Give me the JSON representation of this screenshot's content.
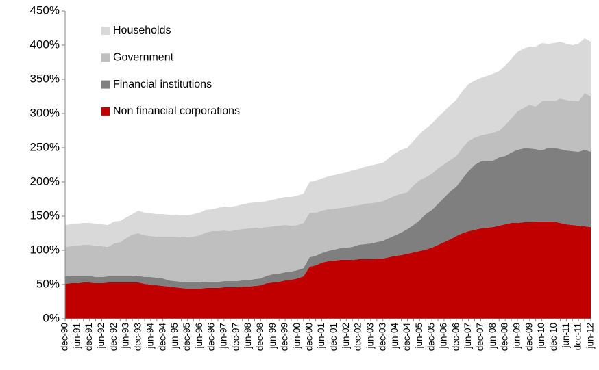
{
  "chart_data": {
    "type": "stacked_area",
    "categories": [
      "dec-90",
      null,
      "jun-91",
      null,
      "dec-91",
      null,
      "jun-92",
      null,
      "dec-92",
      null,
      "jun-93",
      null,
      "dec-93",
      null,
      "jun-94",
      null,
      "dec-94",
      null,
      "jun-95",
      null,
      "dec-95",
      null,
      "jun-96",
      null,
      "dec-96",
      null,
      "jun-97",
      null,
      "dec-97",
      null,
      "jun-98",
      null,
      "dec-98",
      null,
      "jun-99",
      null,
      "dec-99",
      null,
      "jun-00",
      null,
      "dec-00",
      null,
      "jun-01",
      null,
      "dec-01",
      null,
      "jun-02",
      null,
      "dec-02",
      null,
      "jun-03",
      null,
      "dec-03",
      null,
      "jun-04",
      null,
      "dec-04",
      null,
      "jun-05",
      null,
      "dec-05",
      null,
      "jun-06",
      null,
      "dec-06",
      null,
      "jun-07",
      null,
      "dec-07",
      null,
      "jun-08",
      null,
      "dec-08",
      null,
      "jun-09",
      null,
      "dec-09",
      null,
      "jun-10",
      null,
      "dec-10",
      null,
      "jun-11",
      null,
      "dec-11",
      null,
      "jun-12"
    ],
    "series": [
      {
        "name": "Non financial corporations",
        "color": "#c00000",
        "values": [
          51,
          52,
          52,
          53,
          53,
          52,
          52,
          53,
          53,
          53,
          53,
          53,
          53,
          51,
          50,
          49,
          48,
          47,
          46,
          45,
          44,
          44,
          44,
          45,
          45,
          45,
          46,
          46,
          46,
          47,
          47,
          48,
          49,
          52,
          53,
          54,
          56,
          57,
          59,
          62,
          76,
          78,
          82,
          84,
          85,
          86,
          86,
          86,
          87,
          87,
          87,
          88,
          88,
          90,
          92,
          93,
          95,
          97,
          99,
          101,
          104,
          108,
          112,
          116,
          121,
          125,
          128,
          130,
          132,
          133,
          134,
          136,
          138,
          140,
          140,
          141,
          141,
          142,
          142,
          142,
          142,
          140,
          138,
          137,
          136,
          135,
          134
        ]
      },
      {
        "name": "Financial institutions",
        "color": "#7f7f7f",
        "values": [
          11,
          11,
          11,
          10,
          10,
          9,
          9,
          9,
          9,
          9,
          9,
          9,
          10,
          10,
          11,
          11,
          11,
          9,
          9,
          9,
          9,
          9,
          9,
          9,
          9,
          9,
          9,
          9,
          9,
          9,
          9,
          10,
          10,
          11,
          12,
          12,
          12,
          12,
          12,
          12,
          14,
          14,
          14,
          15,
          16,
          17,
          18,
          19,
          21,
          22,
          23,
          24,
          26,
          28,
          30,
          33,
          36,
          40,
          45,
          52,
          55,
          60,
          65,
          70,
          72,
          80,
          88,
          95,
          98,
          98,
          97,
          100,
          100,
          103,
          107,
          108,
          108,
          106,
          104,
          108,
          108,
          108,
          108,
          108,
          108,
          112,
          110
        ]
      },
      {
        "name": "Government",
        "color": "#bfbfbf",
        "values": [
          43,
          43,
          44,
          45,
          45,
          46,
          45,
          43,
          48,
          50,
          56,
          61,
          62,
          61,
          60,
          60,
          61,
          64,
          65,
          65,
          66,
          67,
          69,
          72,
          74,
          74,
          74,
          73,
          75,
          75,
          76,
          75,
          74,
          71,
          70,
          70,
          69,
          67,
          66,
          66,
          65,
          63,
          62,
          61,
          60,
          59,
          59,
          60,
          58,
          59,
          59,
          58,
          58,
          58,
          58,
          57,
          54,
          58,
          59,
          54,
          53,
          52,
          49,
          46,
          45,
          45,
          44,
          40,
          38,
          39,
          41,
          39,
          45,
          50,
          56,
          59,
          64,
          62,
          72,
          68,
          68,
          74,
          74,
          73,
          74,
          83,
          81
        ]
      },
      {
        "name": "Households",
        "color": "#d9d9d9",
        "values": [
          32,
          32,
          32,
          32,
          32,
          32,
          32,
          32,
          32,
          31,
          30,
          30,
          33,
          33,
          33,
          33,
          33,
          32,
          32,
          32,
          32,
          33,
          33,
          33,
          32,
          34,
          35,
          35,
          35,
          36,
          37,
          37,
          37,
          38,
          39,
          40,
          41,
          42,
          43,
          43,
          45,
          47,
          47,
          48,
          49,
          50,
          51,
          52,
          53,
          54,
          55,
          56,
          56,
          59,
          62,
          64,
          65,
          65,
          67,
          71,
          73,
          75,
          77,
          80,
          82,
          83,
          83,
          83,
          84,
          85,
          86,
          87,
          87,
          87,
          87,
          87,
          85,
          88,
          85,
          84,
          85,
          83,
          82,
          82,
          84,
          80,
          80
        ]
      }
    ],
    "ylim": [
      0,
      450
    ],
    "yticks": [
      {
        "value": 0,
        "label": "0%"
      },
      {
        "value": 50,
        "label": "50%"
      },
      {
        "value": 100,
        "label": "100%"
      },
      {
        "value": 150,
        "label": "150%"
      },
      {
        "value": 200,
        "label": "200%"
      },
      {
        "value": 250,
        "label": "250%"
      },
      {
        "value": 300,
        "label": "300%"
      },
      {
        "value": 350,
        "label": "350%"
      },
      {
        "value": 400,
        "label": "400%"
      },
      {
        "value": 450,
        "label": "450%"
      }
    ],
    "grid": false,
    "legend": "upper left"
  }
}
